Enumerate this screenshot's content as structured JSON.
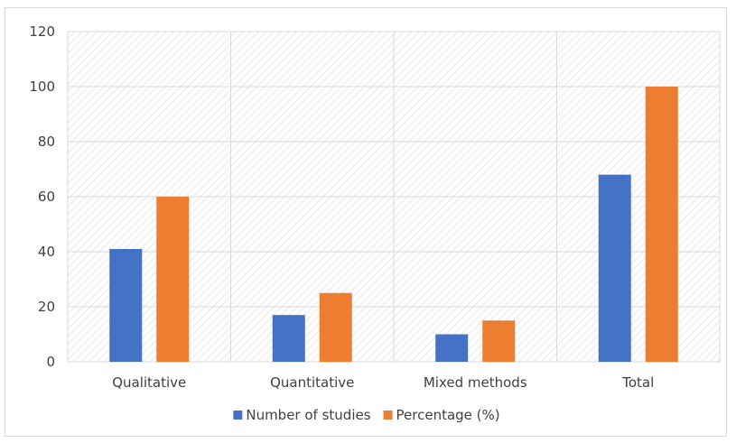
{
  "chart_data": {
    "type": "bar",
    "title": "",
    "xlabel": "",
    "ylabel": "",
    "categories": [
      "Qualitative",
      "Quantitative",
      "Mixed methods",
      "Total"
    ],
    "series": [
      {
        "name": "Number of studies",
        "color": "#4472C4",
        "values": [
          41,
          17,
          10,
          68
        ]
      },
      {
        "name": "Percentage (%)",
        "color": "#ED7D31",
        "values": [
          60,
          25,
          15,
          100
        ]
      }
    ],
    "ylim": [
      0,
      120
    ],
    "yticks": [
      0,
      20,
      40,
      60,
      80,
      100,
      120
    ],
    "grid": true,
    "legend_position": "bottom"
  }
}
